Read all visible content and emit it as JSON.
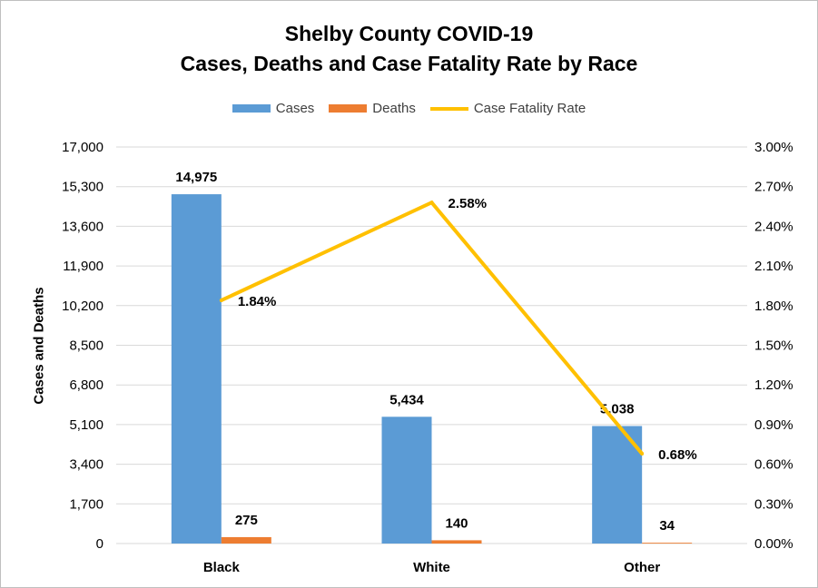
{
  "chart_data": {
    "type": "bar",
    "title_lines": [
      "Shelby County COVID-19",
      "Cases, Deaths and Case Fatality Rate by Race"
    ],
    "categories": [
      "Black",
      "White",
      "Other"
    ],
    "ylabel": "Cases and Deaths",
    "y2label": "",
    "ylim": [
      0,
      17000
    ],
    "y2lim": [
      0,
      0.03
    ],
    "yticks": [
      "0",
      "1,700",
      "3,400",
      "5,100",
      "6,800",
      "8,500",
      "10,200",
      "11,900",
      "13,600",
      "15,300",
      "17,000"
    ],
    "y2ticks": [
      "0.00%",
      "0.30%",
      "0.60%",
      "0.90%",
      "1.20%",
      "1.50%",
      "1.80%",
      "2.10%",
      "2.40%",
      "2.70%",
      "3.00%"
    ],
    "grid": true,
    "legend_position": "top",
    "series": [
      {
        "name": "Cases",
        "type": "bar",
        "axis": "left",
        "color": "#5b9bd5",
        "values": [
          14975,
          5434,
          5038
        ],
        "labels": [
          "14,975",
          "5,434",
          "5,038"
        ]
      },
      {
        "name": "Deaths",
        "type": "bar",
        "axis": "left",
        "color": "#ed7d31",
        "values": [
          275,
          140,
          34
        ],
        "labels": [
          "275",
          "140",
          "34"
        ]
      },
      {
        "name": "Case Fatality Rate",
        "type": "line",
        "axis": "right",
        "color": "#ffc000",
        "values": [
          0.0184,
          0.0258,
          0.0068
        ],
        "labels": [
          "1.84%",
          "2.58%",
          "0.68%"
        ]
      }
    ]
  }
}
